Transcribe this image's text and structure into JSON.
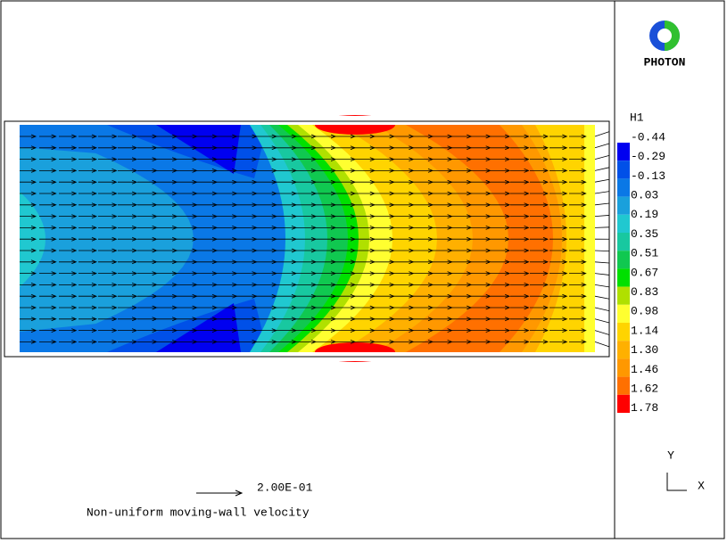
{
  "logo": {
    "label": "PHOTON"
  },
  "legend": {
    "title": "H1",
    "levels": [
      {
        "label": "-0.44",
        "color": "#0000f0"
      },
      {
        "label": "-0.29",
        "color": "#0050e8"
      },
      {
        "label": "-0.13",
        "color": "#0a78e6"
      },
      {
        "label": "0.03",
        "color": "#1aa0dc"
      },
      {
        "label": "0.19",
        "color": "#20c8d0"
      },
      {
        "label": "0.35",
        "color": "#18c8a0"
      },
      {
        "label": "0.51",
        "color": "#10c850"
      },
      {
        "label": "0.67",
        "color": "#00e000"
      },
      {
        "label": "0.83",
        "color": "#b0e000"
      },
      {
        "label": "0.98",
        "color": "#ffff30"
      },
      {
        "label": "1.14",
        "color": "#ffd400"
      },
      {
        "label": "1.30",
        "color": "#ffb000"
      },
      {
        "label": "1.46",
        "color": "#ff9800"
      },
      {
        "label": "1.62",
        "color": "#ff7000"
      },
      {
        "label": "1.78",
        "color": "#ff0000"
      }
    ]
  },
  "vector_scale": {
    "label": "2.00E-01"
  },
  "caption": "Non-uniform moving-wall velocity",
  "axes": {
    "y": "Y",
    "x": "X"
  }
}
